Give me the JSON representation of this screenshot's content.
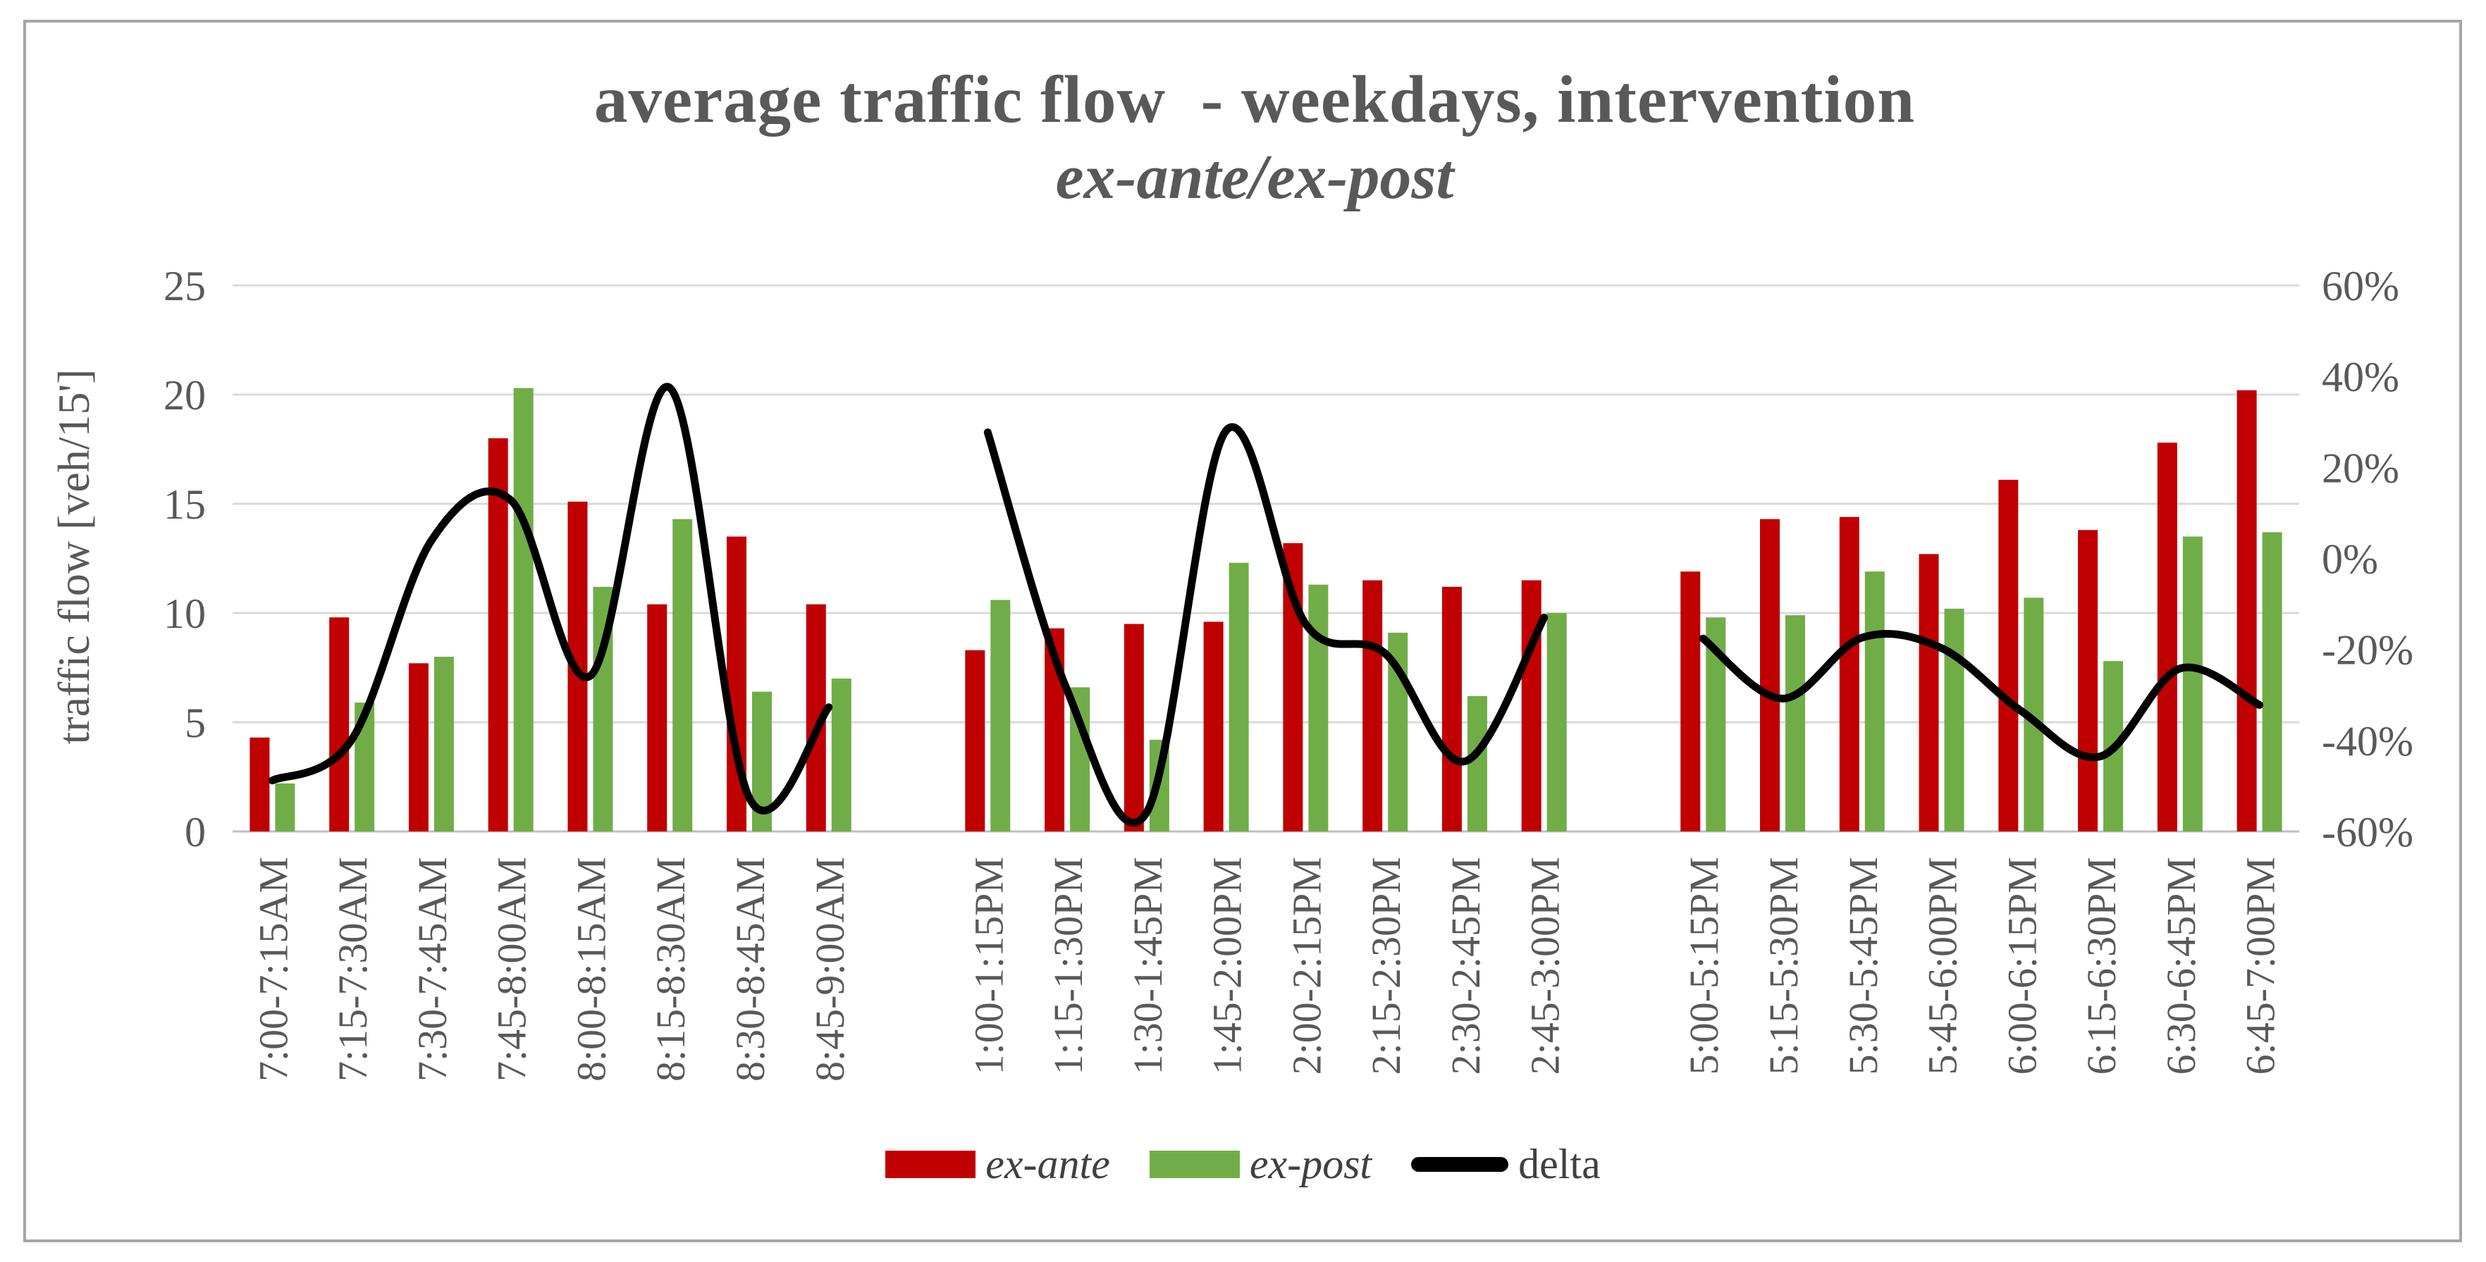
{
  "figure": {
    "background": "#FFFFFF",
    "border_color": "#A6A6A6"
  },
  "title": {
    "line1": "average traffic flow  - weekdays, intervention",
    "line2": "ex-ante/ex-post",
    "color": "#595959"
  },
  "chart_data": {
    "type": "bar+line",
    "title": "average traffic flow - weekdays, intervention",
    "subtitle": "ex-ante/ex-post",
    "categories": [
      "7:00-7:15AM",
      "7:15-7:30AM",
      "7:30-7:45AM",
      "7:45-8:00AM",
      "8:00-8:15AM",
      "8:15-8:30AM",
      "8:30-8:45AM",
      "8:45-9:00AM",
      "1:00-1:15PM",
      "1:15-1:30PM",
      "1:30-1:45PM",
      "1:45-2:00PM",
      "2:00-2:15PM",
      "2:15-2:30PM",
      "2:30-2:45PM",
      "2:45-3:00PM",
      "5:00-5:15PM",
      "5:15-5:30PM",
      "5:30-5:45PM",
      "5:45-6:00PM",
      "6:00-6:15PM",
      "6:15-6:30PM",
      "6:30-6:45PM",
      "6:45-7:00PM"
    ],
    "groups": [
      {
        "start": 0,
        "end": 7
      },
      {
        "start": 8,
        "end": 15
      },
      {
        "start": 16,
        "end": 23
      }
    ],
    "series": [
      {
        "name": "ex-ante",
        "type": "bar",
        "axis": "left",
        "color": "#C00000",
        "values": [
          4.3,
          9.8,
          7.7,
          18.0,
          15.1,
          10.4,
          13.5,
          10.4,
          8.3,
          9.3,
          9.5,
          9.6,
          13.2,
          11.5,
          11.2,
          11.5,
          11.9,
          14.3,
          14.4,
          12.7,
          16.1,
          13.8,
          17.8,
          20.2
        ]
      },
      {
        "name": "ex-post",
        "type": "bar",
        "axis": "left",
        "color": "#70AD47",
        "values": [
          2.2,
          5.9,
          8.0,
          20.3,
          11.2,
          14.3,
          6.4,
          7.0,
          10.6,
          6.6,
          4.2,
          12.3,
          11.3,
          9.1,
          6.2,
          10.0,
          9.8,
          9.9,
          11.9,
          10.2,
          10.7,
          7.8,
          13.5,
          13.7
        ]
      },
      {
        "name": "delta",
        "type": "line",
        "axis": "right",
        "color": "#000000",
        "values_pct": [
          -48.8,
          -39.8,
          3.9,
          12.8,
          -25.8,
          37.5,
          -52.6,
          -32.7,
          27.7,
          -29.0,
          -55.8,
          28.1,
          -14.4,
          -20.9,
          -44.6,
          -13.0,
          -17.6,
          -30.8,
          -17.4,
          -19.7,
          -33.5,
          -43.5,
          -24.2,
          -32.2
        ]
      }
    ],
    "y_left": {
      "label": "traffic flow [veh/15']",
      "min": 0,
      "max": 25,
      "ticks": [
        0,
        5,
        10,
        15,
        20,
        25
      ]
    },
    "y_right": {
      "min": -60,
      "max": 60,
      "ticks": [
        60,
        40,
        20,
        0,
        -20,
        -40,
        -60
      ],
      "tick_suffix": "%"
    },
    "legend": [
      {
        "label": "ex-ante",
        "color": "#C00000",
        "marker": "box"
      },
      {
        "label": "ex-post",
        "color": "#70AD47",
        "marker": "box"
      },
      {
        "label": "delta",
        "color": "#000000",
        "marker": "line"
      }
    ],
    "style": {
      "gridline_color": "#D9D9D9",
      "axisline_color": "#BFBFBF",
      "tick_label_color": "#595959",
      "legend_label_color": "#404040"
    },
    "layout": {
      "grid": true,
      "legend_position": "bottom",
      "x_labels_rotated_deg": 90
    }
  }
}
